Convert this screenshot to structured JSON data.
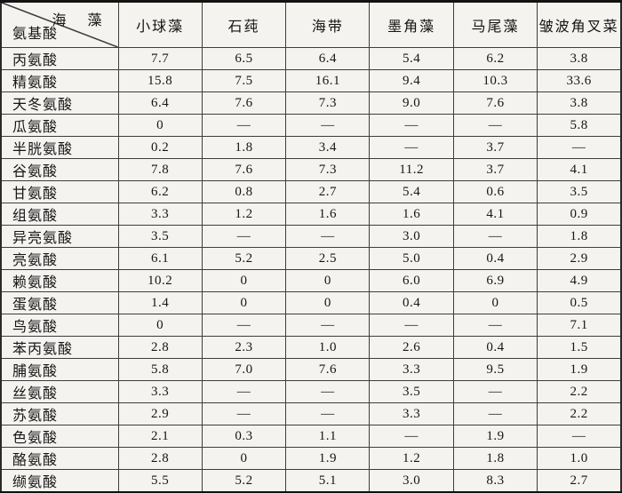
{
  "colors": {
    "paper": "#f4f3f0",
    "ink": "#161616",
    "grid": "#3d3d3d",
    "frame": "#131313"
  },
  "table": {
    "corner": {
      "top_label": "海 藻",
      "bottom_label": "氨基酸"
    },
    "columns": [
      "小球藻",
      "石莼",
      "海带",
      "墨角藻",
      "马尾藻",
      "皱波角叉菜"
    ],
    "dash": "—",
    "rows": [
      {
        "label": "丙氨酸",
        "values": [
          "7.7",
          "6.5",
          "6.4",
          "5.4",
          "6.2",
          "3.8"
        ]
      },
      {
        "label": "精氨酸",
        "values": [
          "15.8",
          "7.5",
          "16.1",
          "9.4",
          "10.3",
          "33.6"
        ]
      },
      {
        "label": "天冬氨酸",
        "values": [
          "6.4",
          "7.6",
          "7.3",
          "9.0",
          "7.6",
          "3.8"
        ]
      },
      {
        "label": "瓜氨酸",
        "values": [
          "0",
          "—",
          "—",
          "—",
          "—",
          "5.8"
        ]
      },
      {
        "label": "半胱氨酸",
        "values": [
          "0.2",
          "1.8",
          "3.4",
          "—",
          "3.7",
          "—"
        ]
      },
      {
        "label": "谷氨酸",
        "values": [
          "7.8",
          "7.6",
          "7.3",
          "11.2",
          "3.7",
          "4.1"
        ]
      },
      {
        "label": "甘氨酸",
        "values": [
          "6.2",
          "0.8",
          "2.7",
          "5.4",
          "0.6",
          "3.5"
        ]
      },
      {
        "label": "组氨酸",
        "values": [
          "3.3",
          "1.2",
          "1.6",
          "1.6",
          "4.1",
          "0.9"
        ]
      },
      {
        "label": "异亮氨酸",
        "values": [
          "3.5",
          "—",
          "—",
          "3.0",
          "—",
          "1.8"
        ]
      },
      {
        "label": "亮氨酸",
        "values": [
          "6.1",
          "5.2",
          "2.5",
          "5.0",
          "0.4",
          "2.9"
        ]
      },
      {
        "label": "赖氨酸",
        "values": [
          "10.2",
          "0",
          "0",
          "6.0",
          "6.9",
          "4.9"
        ]
      },
      {
        "label": "蛋氨酸",
        "values": [
          "1.4",
          "0",
          "0",
          "0.4",
          "0",
          "0.5"
        ]
      },
      {
        "label": "鸟氨酸",
        "values": [
          "0",
          "—",
          "—",
          "—",
          "—",
          "7.1"
        ]
      },
      {
        "label": "苯丙氨酸",
        "values": [
          "2.8",
          "2.3",
          "1.0",
          "2.6",
          "0.4",
          "1.5"
        ]
      },
      {
        "label": "脯氨酸",
        "values": [
          "5.8",
          "7.0",
          "7.6",
          "3.3",
          "9.5",
          "1.9"
        ]
      },
      {
        "label": "丝氨酸",
        "values": [
          "3.3",
          "—",
          "—",
          "3.5",
          "—",
          "2.2"
        ]
      },
      {
        "label": "苏氨酸",
        "values": [
          "2.9",
          "—",
          "—",
          "3.3",
          "—",
          "2.2"
        ]
      },
      {
        "label": "色氨酸",
        "values": [
          "2.1",
          "0.3",
          "1.1",
          "—",
          "1.9",
          "—"
        ]
      },
      {
        "label": "酪氨酸",
        "values": [
          "2.8",
          "0",
          "1.9",
          "1.2",
          "1.8",
          "1.0"
        ]
      },
      {
        "label": "缬氨酸",
        "values": [
          "5.5",
          "5.2",
          "5.1",
          "3.0",
          "8.3",
          "2.7"
        ]
      }
    ]
  }
}
